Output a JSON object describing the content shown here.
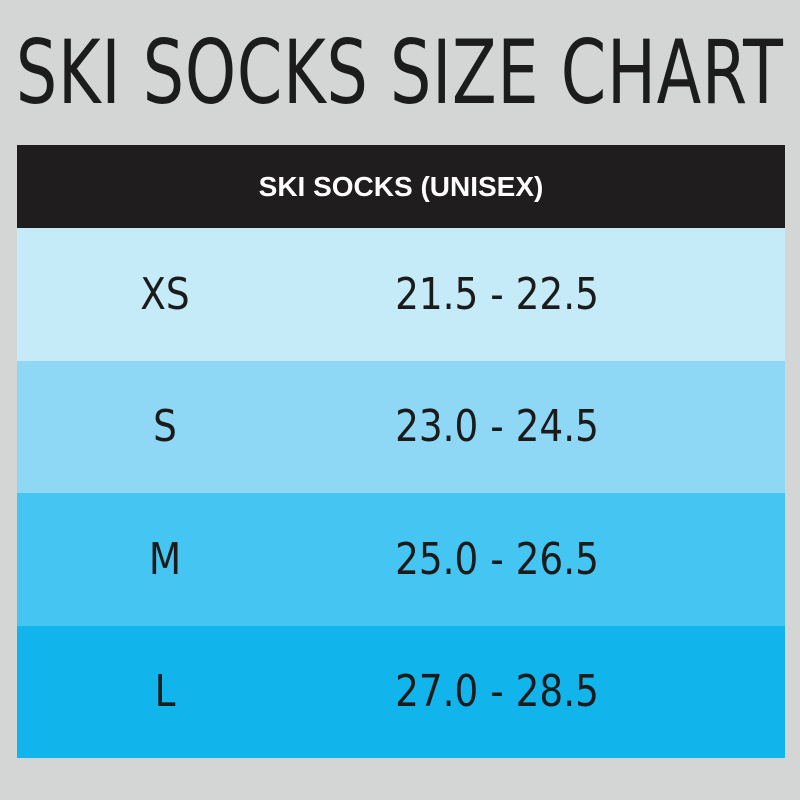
{
  "title": "SKI SOCKS SIZE CHART",
  "table": {
    "header": "SKI SOCKS (UNISEX)",
    "rows": [
      {
        "size": "XS",
        "range": "21.5 - 22.5",
        "color": "#c5eaf8"
      },
      {
        "size": "S",
        "range": "23.0 - 24.5",
        "color": "#8fd8f5"
      },
      {
        "size": "M",
        "range": "25.0 - 26.5",
        "color": "#45c6f2"
      },
      {
        "size": "L",
        "range": "27.0 - 28.5",
        "color": "#12b5eb"
      }
    ]
  }
}
